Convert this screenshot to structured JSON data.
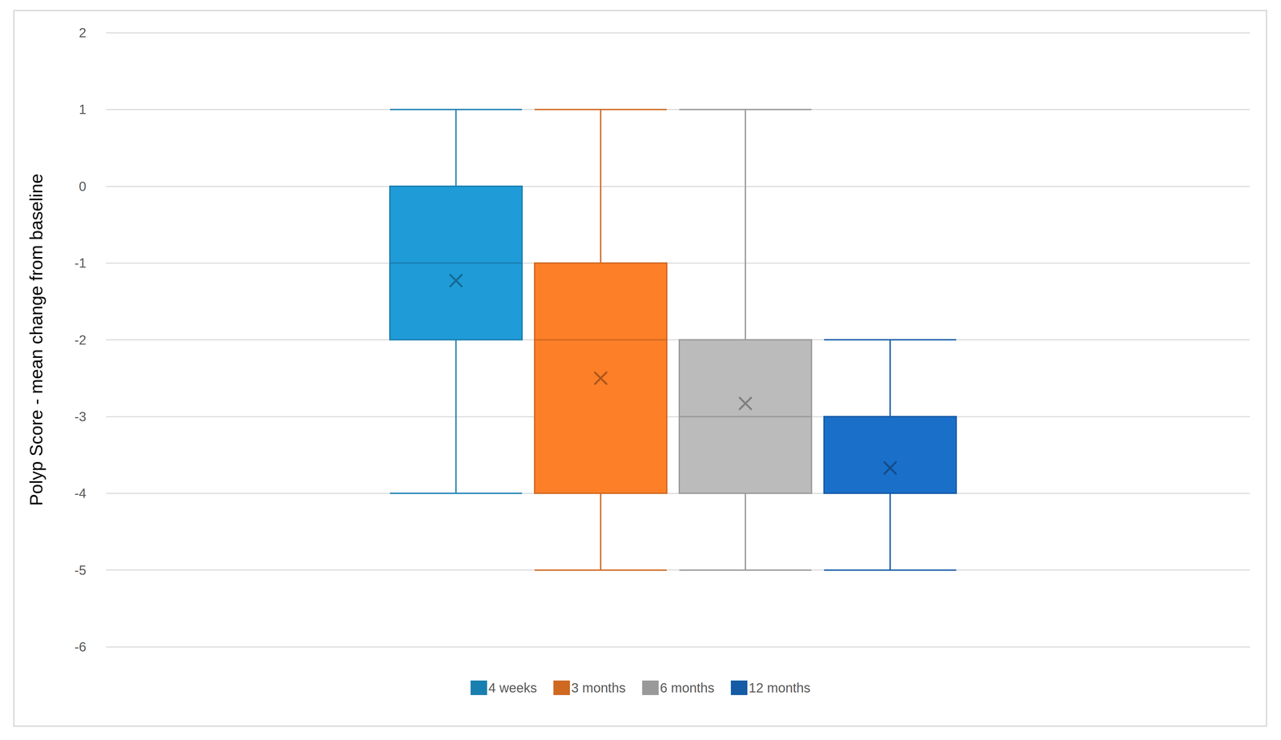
{
  "chart_data": {
    "type": "boxplot",
    "y_label": "Polyp Score - mean change from baseline",
    "ylim": [
      -6,
      2
    ],
    "yticks": [
      -6,
      -5,
      -4,
      -3,
      -2,
      -1,
      0,
      1,
      2
    ],
    "grid": true,
    "legend": "bottom",
    "tick_labels": "y",
    "series": [
      {
        "name": "4 weeks",
        "color": "#1f9bd7",
        "values": [
          -4,
          -2,
          -1,
          0,
          1
        ],
        "mean": -1.23
      },
      {
        "name": "3 months",
        "color": "#fd7f28",
        "values": [
          -5,
          -4,
          -2,
          -1,
          1
        ],
        "mean": -2.5
      },
      {
        "name": "6 months",
        "color": "#bbbbbb",
        "values": [
          -5,
          -4,
          -3,
          -2,
          1
        ],
        "mean": -2.83
      },
      {
        "name": "12 months",
        "color": "#1a6fc9",
        "values": [
          -5,
          -4,
          -4,
          -3,
          -2
        ],
        "mean": -3.67
      }
    ]
  }
}
